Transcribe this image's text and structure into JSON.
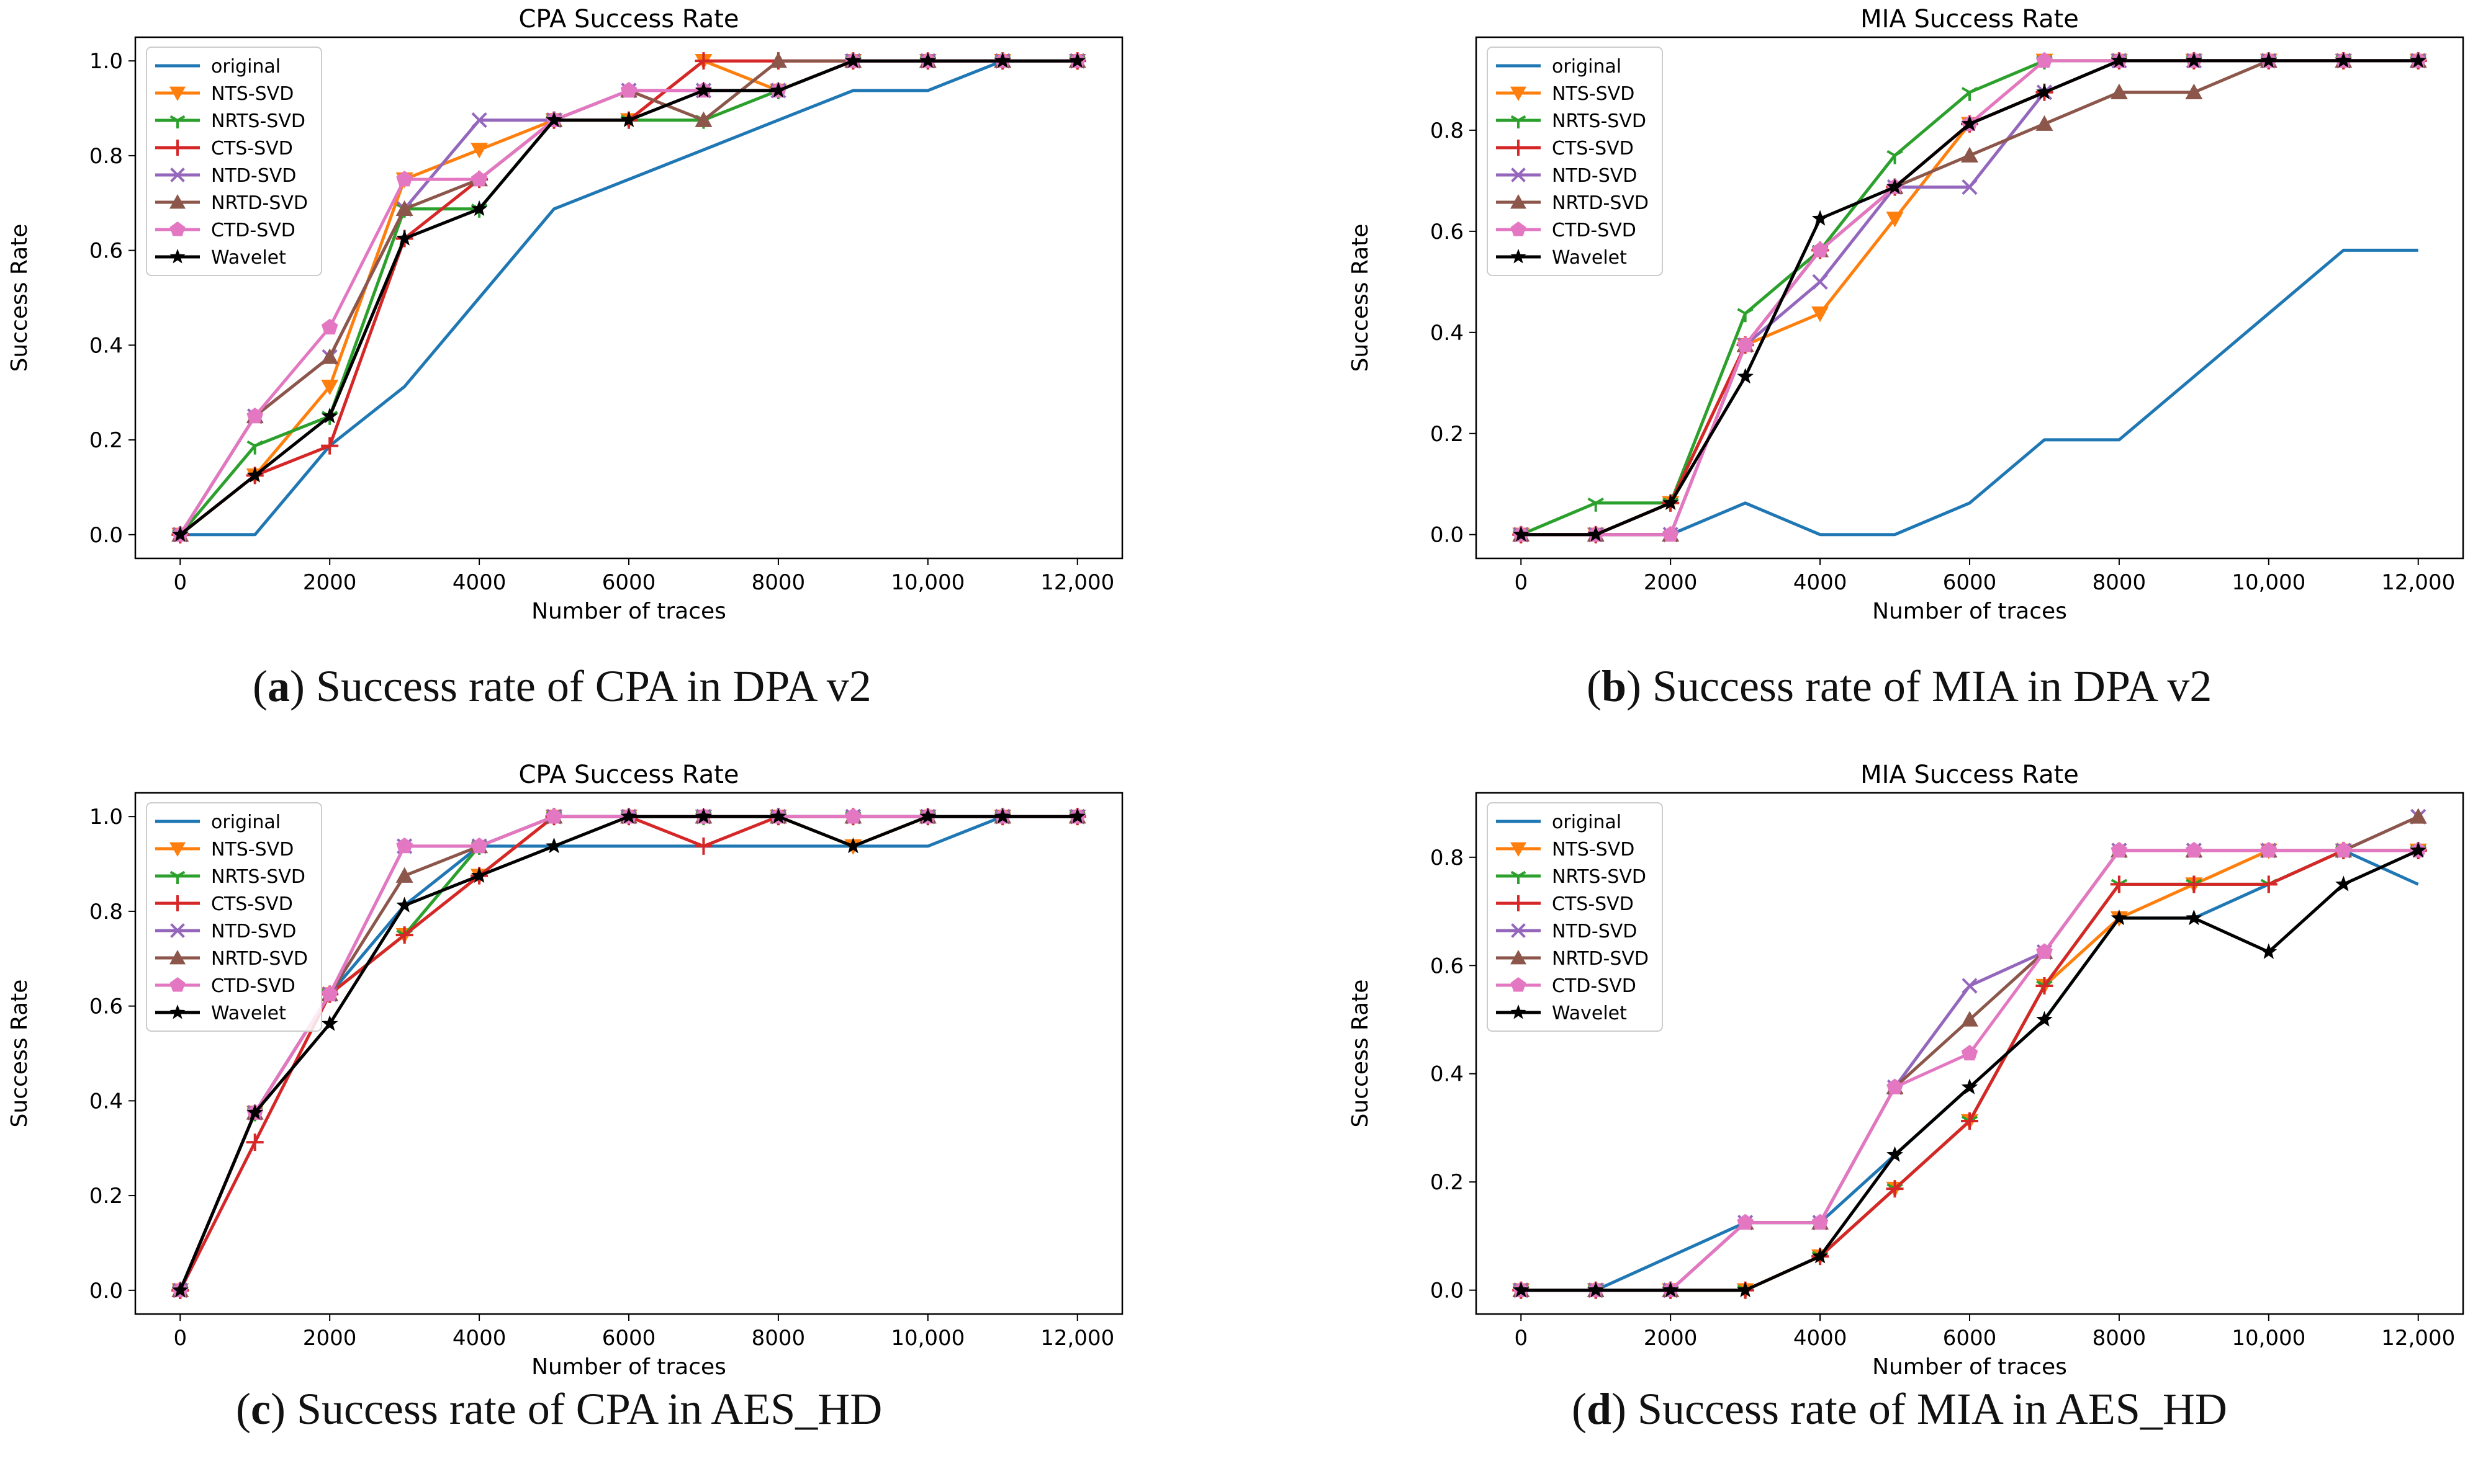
{
  "colors": {
    "original": "#1f77b4",
    "NTS-SVD": "#ff7f0e",
    "NRTS-SVD": "#2ca02c",
    "CTS-SVD": "#d62728",
    "NTD-SVD": "#9467bd",
    "NRTD-SVD": "#8c564b",
    "CTD-SVD": "#e377c2",
    "Wavelet": "#000000"
  },
  "markers": {
    "original": "none",
    "NTS-SVD": "triangle-down",
    "NRTS-SVD": "tri-down",
    "CTS-SVD": "plus",
    "NTD-SVD": "x",
    "NRTD-SVD": "triangle-up",
    "CTD-SVD": "pentagon",
    "Wavelet": "star"
  },
  "captions": [
    {
      "letter": "a",
      "text": "Success rate of CPA in DPA v2"
    },
    {
      "letter": "b",
      "text": "Success rate of MIA in DPA v2"
    },
    {
      "letter": "c",
      "text": "Success rate of CPA in AES_HD"
    },
    {
      "letter": "d",
      "text": "Success rate of MIA in AES_HD"
    }
  ],
  "chart_data": [
    {
      "type": "line",
      "title": "CPA Success Rate",
      "xlabel": "Number of traces",
      "ylabel": "Success Rate",
      "xlim": [
        -600,
        12600
      ],
      "ylim": [
        -0.05,
        1.05
      ],
      "xticks": [
        0,
        2000,
        4000,
        6000,
        8000,
        10000,
        12000
      ],
      "xtick_labels": [
        "0",
        "2000",
        "4000",
        "6000",
        "8000",
        "10,000",
        "12,000"
      ],
      "yticks": [
        0,
        0.2,
        0.4,
        0.6,
        0.8,
        1.0
      ],
      "ytick_labels": [
        "0.0",
        "0.2",
        "0.4",
        "0.6",
        "0.8",
        "1.0"
      ],
      "legend": "top-left",
      "x": [
        0,
        1000,
        2000,
        3000,
        4000,
        5000,
        6000,
        7000,
        8000,
        9000,
        10000,
        11000,
        12000
      ],
      "series": [
        {
          "name": "original",
          "values": [
            0,
            0,
            0.1875,
            0.3125,
            0.5,
            0.6875,
            0.75,
            0.8125,
            0.875,
            0.9375,
            0.9375,
            1,
            1
          ]
        },
        {
          "name": "NTS-SVD",
          "values": [
            0,
            0.125,
            0.3125,
            0.75,
            0.8125,
            0.875,
            0.875,
            1,
            0.9375,
            1,
            1,
            1,
            1
          ]
        },
        {
          "name": "NRTS-SVD",
          "values": [
            0,
            0.1875,
            0.25,
            0.6875,
            0.6875,
            0.875,
            0.875,
            0.875,
            0.9375,
            1,
            1,
            1,
            1
          ]
        },
        {
          "name": "CTS-SVD",
          "values": [
            0,
            0.125,
            0.1875,
            0.625,
            0.75,
            0.875,
            0.875,
            1,
            1,
            1,
            1,
            1,
            1
          ]
        },
        {
          "name": "NTD-SVD",
          "values": [
            0,
            0.25,
            0.375,
            0.6875,
            0.875,
            0.875,
            0.9375,
            0.9375,
            0.9375,
            1,
            1,
            1,
            1
          ]
        },
        {
          "name": "NRTD-SVD",
          "values": [
            0,
            0.25,
            0.375,
            0.6875,
            0.75,
            0.875,
            0.9375,
            0.875,
            1,
            1,
            1,
            1,
            1
          ]
        },
        {
          "name": "CTD-SVD",
          "values": [
            0,
            0.25,
            0.4375,
            0.75,
            0.75,
            0.875,
            0.9375,
            0.9375,
            0.9375,
            1,
            1,
            1,
            1
          ]
        },
        {
          "name": "Wavelet",
          "values": [
            0,
            0.125,
            0.25,
            0.625,
            0.6875,
            0.875,
            0.875,
            0.9375,
            0.9375,
            1,
            1,
            1,
            1
          ]
        }
      ]
    },
    {
      "type": "line",
      "title": "MIA Success Rate",
      "xlabel": "Number of traces",
      "ylabel": "Success Rate",
      "xlim": [
        -600,
        12600
      ],
      "ylim": [
        -0.047,
        0.984
      ],
      "xticks": [
        0,
        2000,
        4000,
        6000,
        8000,
        10000,
        12000
      ],
      "xtick_labels": [
        "0",
        "2000",
        "4000",
        "6000",
        "8000",
        "10,000",
        "12,000"
      ],
      "yticks": [
        0,
        0.2,
        0.4,
        0.6,
        0.8
      ],
      "ytick_labels": [
        "0.0",
        "0.2",
        "0.4",
        "0.6",
        "0.8"
      ],
      "legend": "top-left",
      "x": [
        0,
        1000,
        2000,
        3000,
        4000,
        5000,
        6000,
        7000,
        8000,
        9000,
        10000,
        11000,
        12000
      ],
      "series": [
        {
          "name": "original",
          "values": [
            0,
            0,
            0,
            0.0625,
            0,
            0,
            0.0625,
            0.1875,
            0.1875,
            0.3125,
            0.4375,
            0.5625,
            0.5625
          ]
        },
        {
          "name": "NTS-SVD",
          "values": [
            0,
            0,
            0.0625,
            0.375,
            0.4375,
            0.625,
            0.8125,
            0.9375,
            0.9375,
            0.9375,
            0.9375,
            0.9375,
            0.9375
          ]
        },
        {
          "name": "NRTS-SVD",
          "values": [
            0,
            0.0625,
            0.0625,
            0.4375,
            0.5625,
            0.75,
            0.875,
            0.9375,
            0.9375,
            0.9375,
            0.9375,
            0.9375,
            0.9375
          ]
        },
        {
          "name": "CTS-SVD",
          "values": [
            0,
            0,
            0.0625,
            0.375,
            0.5625,
            0.6875,
            0.8125,
            0.875,
            0.9375,
            0.9375,
            0.9375,
            0.9375,
            0.9375
          ]
        },
        {
          "name": "NTD-SVD",
          "values": [
            0,
            0,
            0,
            0.375,
            0.5,
            0.6875,
            0.6875,
            0.875,
            0.9375,
            0.9375,
            0.9375,
            0.9375,
            0.9375
          ]
        },
        {
          "name": "NRTD-SVD",
          "values": [
            0,
            0,
            0,
            0.375,
            0.5625,
            0.6875,
            0.75,
            0.8125,
            0.875,
            0.875,
            0.9375,
            0.9375,
            0.9375
          ]
        },
        {
          "name": "CTD-SVD",
          "values": [
            0,
            0,
            0,
            0.375,
            0.5625,
            0.6875,
            0.8125,
            0.9375,
            0.9375,
            0.9375,
            0.9375,
            0.9375,
            0.9375
          ]
        },
        {
          "name": "Wavelet",
          "values": [
            0,
            0,
            0.0625,
            0.3125,
            0.625,
            0.6875,
            0.8125,
            0.875,
            0.9375,
            0.9375,
            0.9375,
            0.9375,
            0.9375
          ]
        }
      ]
    },
    {
      "type": "line",
      "title": "CPA Success Rate",
      "xlabel": "Number of traces",
      "ylabel": "Success Rate",
      "xlim": [
        -600,
        12600
      ],
      "ylim": [
        -0.05,
        1.05
      ],
      "xticks": [
        0,
        2000,
        4000,
        6000,
        8000,
        10000,
        12000
      ],
      "xtick_labels": [
        "0",
        "2000",
        "4000",
        "6000",
        "8000",
        "10,000",
        "12,000"
      ],
      "yticks": [
        0,
        0.2,
        0.4,
        0.6,
        0.8,
        1.0
      ],
      "ytick_labels": [
        "0.0",
        "0.2",
        "0.4",
        "0.6",
        "0.8",
        "1.0"
      ],
      "legend": "top-left",
      "x": [
        0,
        1000,
        2000,
        3000,
        4000,
        5000,
        6000,
        7000,
        8000,
        9000,
        10000,
        11000,
        12000
      ],
      "series": [
        {
          "name": "original",
          "values": [
            0,
            0.375,
            0.625,
            0.8125,
            0.9375,
            0.9375,
            0.9375,
            0.9375,
            0.9375,
            0.9375,
            0.9375,
            1,
            1
          ]
        },
        {
          "name": "NTS-SVD",
          "values": [
            0,
            0.375,
            0.625,
            0.75,
            0.875,
            1,
            1,
            1,
            1,
            0.9375,
            1,
            1,
            1
          ]
        },
        {
          "name": "NRTS-SVD",
          "values": [
            0,
            0.375,
            0.625,
            0.75,
            0.9375,
            1,
            1,
            1,
            1,
            1,
            1,
            1,
            1
          ]
        },
        {
          "name": "CTS-SVD",
          "values": [
            0,
            0.3125,
            0.625,
            0.75,
            0.875,
            1,
            1,
            0.9375,
            1,
            1,
            1,
            1,
            1
          ]
        },
        {
          "name": "NTD-SVD",
          "values": [
            0,
            0.375,
            0.625,
            0.9375,
            0.9375,
            1,
            1,
            1,
            1,
            1,
            1,
            1,
            1
          ]
        },
        {
          "name": "NRTD-SVD",
          "values": [
            0,
            0.375,
            0.625,
            0.875,
            0.9375,
            1,
            1,
            1,
            1,
            1,
            1,
            1,
            1
          ]
        },
        {
          "name": "CTD-SVD",
          "values": [
            0,
            0.375,
            0.625,
            0.9375,
            0.9375,
            1,
            1,
            1,
            1,
            1,
            1,
            1,
            1
          ]
        },
        {
          "name": "Wavelet",
          "values": [
            0,
            0.375,
            0.5625,
            0.8125,
            0.875,
            0.9375,
            1,
            1,
            1,
            0.9375,
            1,
            1,
            1
          ]
        }
      ]
    },
    {
      "type": "line",
      "title": "MIA Success Rate",
      "xlabel": "Number of traces",
      "ylabel": "Success Rate",
      "xlim": [
        -600,
        12600
      ],
      "ylim": [
        -0.044,
        0.919
      ],
      "xticks": [
        0,
        2000,
        4000,
        6000,
        8000,
        10000,
        12000
      ],
      "xtick_labels": [
        "0",
        "2000",
        "4000",
        "6000",
        "8000",
        "10,000",
        "12,000"
      ],
      "yticks": [
        0,
        0.2,
        0.4,
        0.6,
        0.8
      ],
      "ytick_labels": [
        "0.0",
        "0.2",
        "0.4",
        "0.6",
        "0.8"
      ],
      "legend": "top-left",
      "x": [
        0,
        1000,
        2000,
        3000,
        4000,
        5000,
        6000,
        7000,
        8000,
        9000,
        10000,
        11000,
        12000
      ],
      "series": [
        {
          "name": "original",
          "values": [
            0,
            0,
            0.0625,
            0.125,
            0.125,
            0.25,
            0.375,
            0.5,
            0.6875,
            0.6875,
            0.75,
            0.8125,
            0.75
          ]
        },
        {
          "name": "NTS-SVD",
          "values": [
            0,
            0,
            0,
            0,
            0.0625,
            0.1875,
            0.3125,
            0.5625,
            0.6875,
            0.75,
            0.8125,
            0.8125,
            0.8125
          ]
        },
        {
          "name": "NRTS-SVD",
          "values": [
            0,
            0,
            0,
            0,
            0.0625,
            0.1875,
            0.3125,
            0.5625,
            0.75,
            0.75,
            0.75,
            0.8125,
            0.8125
          ]
        },
        {
          "name": "CTS-SVD",
          "values": [
            0,
            0,
            0,
            0,
            0.0625,
            0.1875,
            0.3125,
            0.5625,
            0.75,
            0.75,
            0.75,
            0.8125,
            0.8125
          ]
        },
        {
          "name": "NTD-SVD",
          "values": [
            0,
            0,
            0,
            0.125,
            0.125,
            0.375,
            0.5625,
            0.625,
            0.8125,
            0.8125,
            0.8125,
            0.8125,
            0.875
          ]
        },
        {
          "name": "NRTD-SVD",
          "values": [
            0,
            0,
            0,
            0.125,
            0.125,
            0.375,
            0.5,
            0.625,
            0.8125,
            0.8125,
            0.8125,
            0.8125,
            0.875
          ]
        },
        {
          "name": "CTD-SVD",
          "values": [
            0,
            0,
            0,
            0.125,
            0.125,
            0.375,
            0.4375,
            0.625,
            0.8125,
            0.8125,
            0.8125,
            0.8125,
            0.8125
          ]
        },
        {
          "name": "Wavelet",
          "values": [
            0,
            0,
            0,
            0,
            0.0625,
            0.25,
            0.375,
            0.5,
            0.6875,
            0.6875,
            0.625,
            0.75,
            0.8125
          ]
        }
      ]
    }
  ]
}
